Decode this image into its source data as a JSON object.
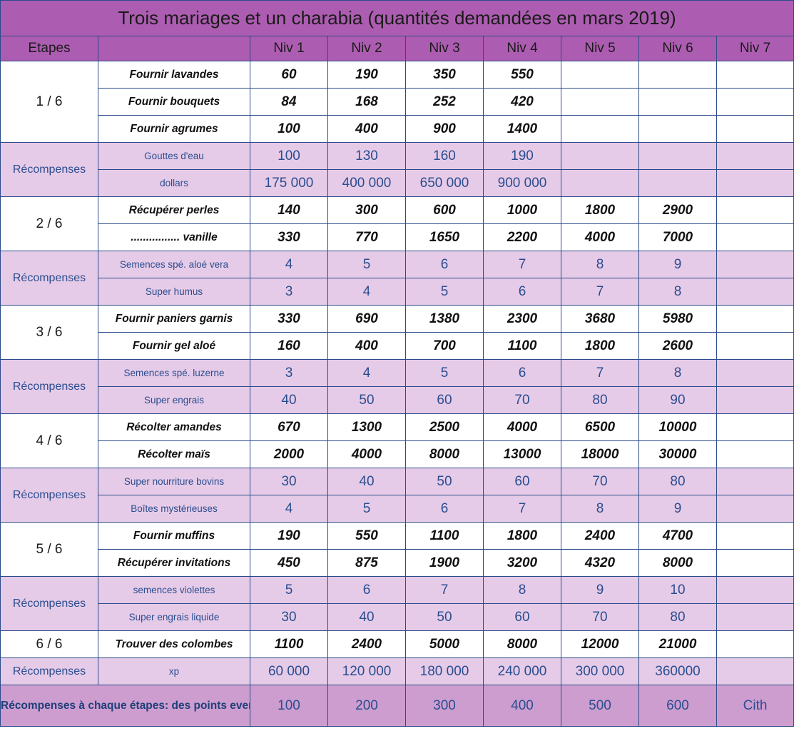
{
  "title": "Trois mariages et un charabia (quantités demandées en mars 2019)",
  "header": {
    "etapes": "Etapes",
    "blank": "",
    "levels": [
      "Niv 1",
      "Niv 2",
      "Niv 3",
      "Niv 4",
      "Niv 5",
      "Niv 6",
      "Niv 7"
    ]
  },
  "stages": [
    {
      "step": "1 / 6",
      "tasks": [
        {
          "name": "Fournir lavandes",
          "values": [
            "60",
            "190",
            "350",
            "550",
            "",
            "",
            ""
          ]
        },
        {
          "name": "Fournir bouquets",
          "values": [
            "84",
            "168",
            "252",
            "420",
            "",
            "",
            ""
          ]
        },
        {
          "name": "Fournir agrumes",
          "values": [
            "100",
            "400",
            "900",
            "1400",
            "",
            "",
            ""
          ]
        }
      ],
      "rewards_label": "Récompenses",
      "rewards": [
        {
          "name": "Gouttes d'eau",
          "values": [
            "100",
            "130",
            "160",
            "190",
            "",
            "",
            ""
          ]
        },
        {
          "name": "dollars",
          "values": [
            "175 000",
            "400 000",
            "650 000",
            "900 000",
            "",
            "",
            ""
          ]
        }
      ]
    },
    {
      "step": "2 / 6",
      "tasks": [
        {
          "name": "Récupérer perles",
          "values": [
            "140",
            "300",
            "600",
            "1000",
            "1800",
            "2900",
            ""
          ]
        },
        {
          "name": "................ vanille",
          "values": [
            "330",
            "770",
            "1650",
            "2200",
            "4000",
            "7000",
            ""
          ]
        }
      ],
      "rewards_label": "Récompenses",
      "rewards": [
        {
          "name": "Semences spé. aloé vera",
          "values": [
            "4",
            "5",
            "6",
            "7",
            "8",
            "9",
            ""
          ]
        },
        {
          "name": "Super humus",
          "values": [
            "3",
            "4",
            "5",
            "6",
            "7",
            "8",
            ""
          ]
        }
      ]
    },
    {
      "step": "3 / 6",
      "tasks": [
        {
          "name": "Fournir paniers garnis",
          "values": [
            "330",
            "690",
            "1380",
            "2300",
            "3680",
            "5980",
            ""
          ]
        },
        {
          "name": "Fournir gel aloé",
          "values": [
            "160",
            "400",
            "700",
            "1100",
            "1800",
            "2600",
            ""
          ]
        }
      ],
      "rewards_label": "Récompenses",
      "rewards": [
        {
          "name": "Semences spé. luzerne",
          "values": [
            "3",
            "4",
            "5",
            "6",
            "7",
            "8",
            ""
          ]
        },
        {
          "name": "Super engrais",
          "values": [
            "40",
            "50",
            "60",
            "70",
            "80",
            "90",
            ""
          ]
        }
      ]
    },
    {
      "step": "4 / 6",
      "tasks": [
        {
          "name": "Récolter amandes",
          "values": [
            "670",
            "1300",
            "2500",
            "4000",
            "6500",
            "10000",
            ""
          ]
        },
        {
          "name": "Récolter maïs",
          "values": [
            "2000",
            "4000",
            "8000",
            "13000",
            "18000",
            "30000",
            ""
          ]
        }
      ],
      "rewards_label": "Récompenses",
      "rewards": [
        {
          "name": "Super nourriture bovins",
          "values": [
            "30",
            "40",
            "50",
            "60",
            "70",
            "80",
            ""
          ]
        },
        {
          "name": "Boîtes mystérieuses",
          "values": [
            "4",
            "5",
            "6",
            "7",
            "8",
            "9",
            ""
          ]
        }
      ]
    },
    {
      "step": "5 / 6",
      "tasks": [
        {
          "name": "Fournir muffins",
          "values": [
            "190",
            "550",
            "1100",
            "1800",
            "2400",
            "4700",
            ""
          ]
        },
        {
          "name": "Récupérer invitations",
          "values": [
            "450",
            "875",
            "1900",
            "3200",
            "4320",
            "8000",
            ""
          ]
        }
      ],
      "rewards_label": "Récompenses",
      "rewards": [
        {
          "name": "semences violettes",
          "values": [
            "5",
            "6",
            "7",
            "8",
            "9",
            "10",
            ""
          ]
        },
        {
          "name": "Super engrais liquide",
          "values": [
            "30",
            "40",
            "50",
            "60",
            "70",
            "80",
            ""
          ]
        }
      ]
    },
    {
      "step": "6 / 6",
      "tasks": [
        {
          "name": "Trouver des colombes",
          "values": [
            "1100",
            "2400",
            "5000",
            "8000",
            "12000",
            "21000",
            ""
          ]
        }
      ],
      "rewards_label": "Récompenses",
      "rewards": [
        {
          "name": "xp",
          "values": [
            "60 000",
            "120 000",
            "180 000",
            "240 000",
            "300 000",
            "360000",
            ""
          ]
        }
      ]
    }
  ],
  "footer": {
    "label": "Récompenses à chaque étapes: des points events championnat du monde",
    "values": [
      "100",
      "200",
      "300",
      "400",
      "500",
      "600",
      "Cith"
    ]
  }
}
